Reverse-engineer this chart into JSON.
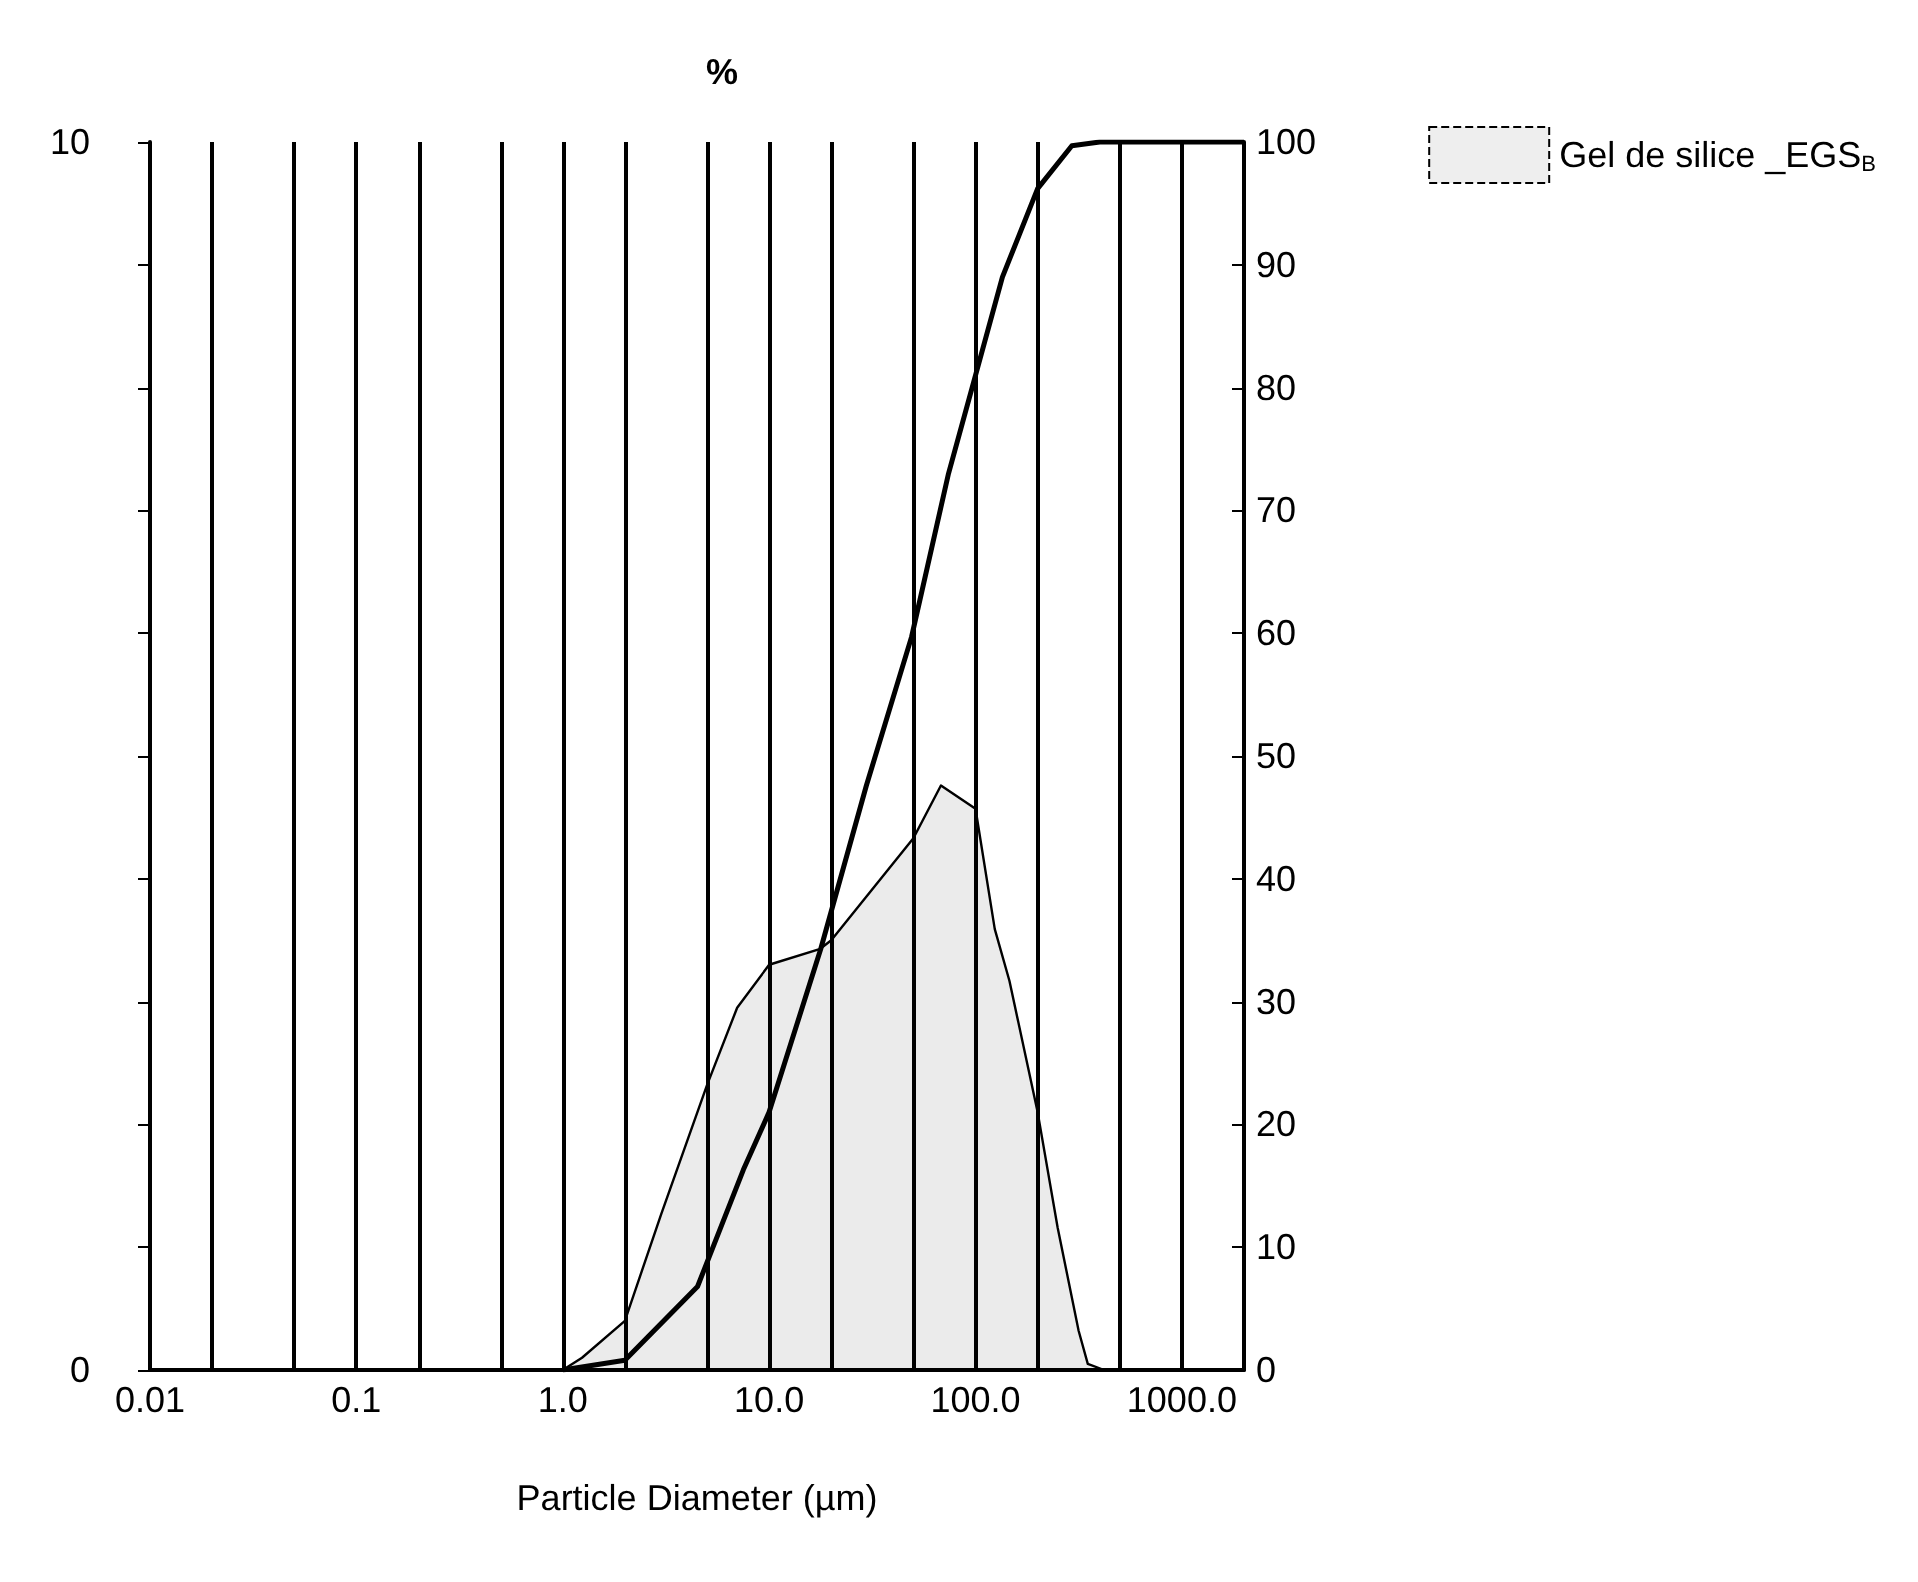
{
  "chart_data": {
    "type": "area",
    "title": "%",
    "xlabel": "Particle Diameter (µm)",
    "log": "x",
    "grid": "x",
    "legend": "top right",
    "xlim": [
      0.01,
      2000
    ],
    "xticks": [
      {
        "value": 0.01,
        "label": "0.01"
      },
      {
        "value": 0.02,
        "label": null
      },
      {
        "value": 0.05,
        "label": null
      },
      {
        "value": 0.1,
        "label": "0.1"
      },
      {
        "value": 0.2,
        "label": null
      },
      {
        "value": 0.5,
        "label": null
      },
      {
        "value": 1,
        "label": "1.0"
      },
      {
        "value": 2,
        "label": null
      },
      {
        "value": 5,
        "label": null
      },
      {
        "value": 10,
        "label": "10.0"
      },
      {
        "value": 20,
        "label": null
      },
      {
        "value": 50,
        "label": null
      },
      {
        "value": 100,
        "label": "100.0"
      },
      {
        "value": 200,
        "label": null
      },
      {
        "value": 500,
        "label": null
      },
      {
        "value": 1000,
        "label": "1000.0"
      }
    ],
    "ylim": [
      0,
      10
    ],
    "yticks": [
      0,
      {
        "value": 1,
        "label": null
      },
      {
        "value": 2,
        "label": null
      },
      {
        "value": 3,
        "label": null
      },
      {
        "value": 4,
        "label": null
      },
      {
        "value": 5,
        "label": null
      },
      {
        "value": 6,
        "label": null
      },
      {
        "value": 7,
        "label": null
      },
      {
        "value": 8,
        "label": null
      },
      {
        "value": 9,
        "label": null
      },
      10
    ],
    "y2lim": [
      0,
      100
    ],
    "y2ticks": [
      0,
      10,
      20,
      30,
      40,
      50,
      60,
      70,
      80,
      90,
      100
    ],
    "series": [
      {
        "name": "Gel de silice _EGS$_{B}$",
        "color": "#000000",
        "x": [
          1,
          1.24,
          2,
          3,
          5,
          7,
          10,
          17.7,
          20,
          50,
          68,
          100,
          124,
          146,
          200,
          250,
          316,
          350,
          420
        ],
        "values": [
          0,
          0.1,
          0.4,
          1.27,
          2.32,
          2.95,
          3.3,
          3.43,
          3.5,
          4.33,
          4.76,
          4.57,
          3.59,
          3.17,
          2.1,
          1.16,
          0.32,
          0.05,
          0
        ]
      },
      {
        "type": "line",
        "axis": "y2",
        "color": "#000000",
        "x": [
          1,
          2,
          4.5,
          7.5,
          10,
          17.8,
          29.6,
          49,
          74,
          100,
          135,
          200,
          293,
          400,
          1000,
          2000
        ],
        "values": [
          0,
          0.8,
          6.8,
          16.3,
          21,
          34.3,
          47.6,
          59.7,
          73,
          81,
          89,
          96.2,
          99.7,
          100,
          100,
          100
        ]
      }
    ]
  }
}
